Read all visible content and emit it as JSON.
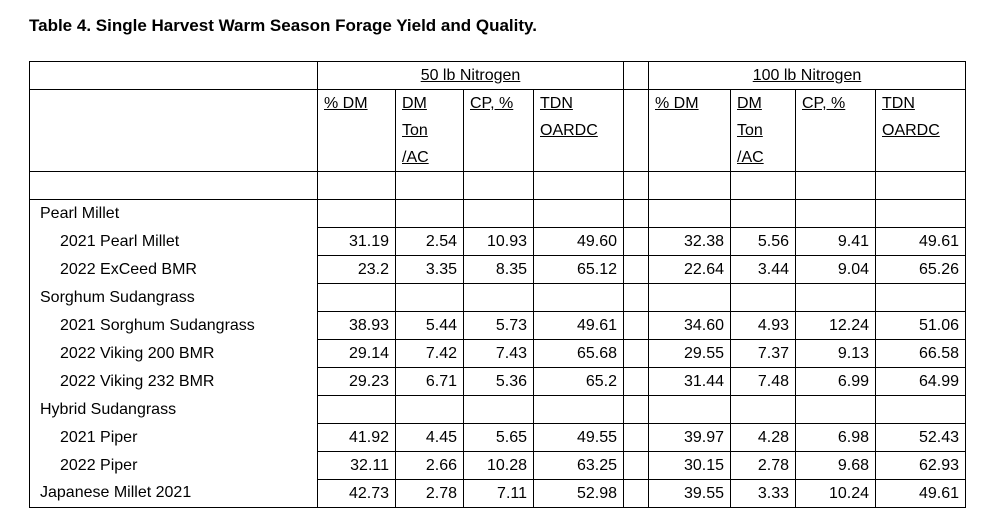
{
  "title": "Table 4. Single Harvest Warm Season Forage Yield and Quality.",
  "table": {
    "group_headers": [
      "50 lb Nitrogen",
      "100 lb Nitrogen"
    ],
    "column_headers": [
      [
        "% DM"
      ],
      [
        "DM",
        "Ton",
        "/AC"
      ],
      [
        "CP, %"
      ],
      [
        "TDN",
        "OARDC"
      ]
    ],
    "rows": [
      {
        "label": "Pearl Millet",
        "rows": [
          {
            "label": "2021 Pearl Millet",
            "values": [
              "31.19",
              "2.54",
              "10.93",
              "49.60",
              "32.38",
              "5.56",
              "9.41",
              "49.61"
            ]
          },
          {
            "label": "2022 ExCeed BMR",
            "values": [
              "23.2",
              "3.35",
              "8.35",
              "65.12",
              "22.64",
              "3.44",
              "9.04",
              "65.26"
            ]
          }
        ]
      },
      {
        "label": "Sorghum Sudangrass",
        "rows": [
          {
            "label": "2021 Sorghum Sudangrass",
            "values": [
              "38.93",
              "5.44",
              "5.73",
              "49.61",
              "34.60",
              "4.93",
              "12.24",
              "51.06"
            ]
          },
          {
            "label": "2022 Viking 200 BMR",
            "values": [
              "29.14",
              "7.42",
              "7.43",
              "65.68",
              "29.55",
              "7.37",
              "9.13",
              "66.58"
            ]
          },
          {
            "label": "2022 Viking 232 BMR",
            "values": [
              "29.23",
              "6.71",
              "5.36",
              "65.2",
              "31.44",
              "7.48",
              "6.99",
              "64.99"
            ]
          }
        ]
      },
      {
        "label": "Hybrid Sudangrass",
        "rows": [
          {
            "label": "2021 Piper",
            "values": [
              "41.92",
              "4.45",
              "5.65",
              "49.55",
              "39.97",
              "4.28",
              "6.98",
              "52.43"
            ]
          },
          {
            "label": "2022 Piper",
            "values": [
              "32.11",
              "2.66",
              "10.28",
              "63.25",
              "30.15",
              "2.78",
              "9.68",
              "62.93"
            ]
          }
        ]
      },
      {
        "label": "Japanese Millet 2021",
        "values": [
          "42.73",
          "2.78",
          "7.11",
          "52.98",
          "39.55",
          "3.33",
          "10.24",
          "49.61"
        ]
      }
    ]
  }
}
